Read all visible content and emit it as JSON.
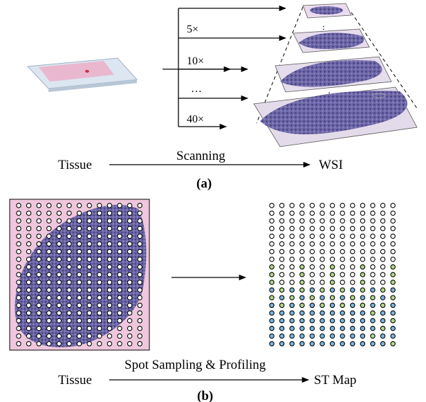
{
  "panel_a": {
    "caption": "(a)",
    "source_label": "Tissue",
    "process_label": "Scanning",
    "target_label": "WSI",
    "magnifications": [
      "5×",
      "10×",
      "…",
      "40×"
    ]
  },
  "panel_b": {
    "caption": "(b)",
    "source_label": "Tissue",
    "process_label": "Spot Sampling & Profiling",
    "target_label": "ST Map",
    "grid": {
      "rows": 19,
      "cols": 13
    }
  },
  "colors": {
    "tissue_pink": "#e8b7cf",
    "tissue_purple": "#5b5598",
    "spot_blue": "#7bb4dd",
    "spot_green": "#b3d88a",
    "slide_glass": "#c9d9e7"
  }
}
